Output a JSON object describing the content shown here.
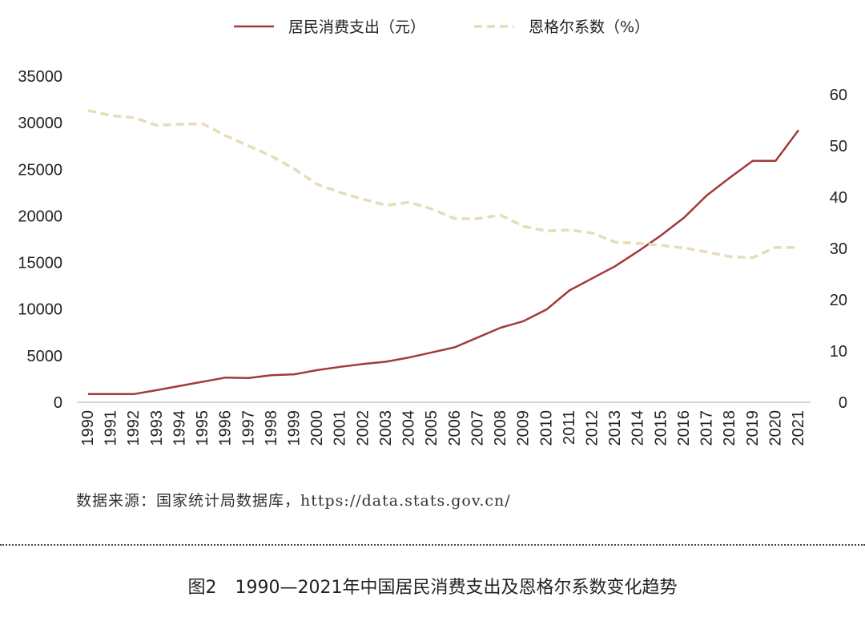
{
  "chart_data": {
    "type": "line",
    "title": "",
    "categories": [
      "1990",
      "1991",
      "1992",
      "1993",
      "1994",
      "1995",
      "1996",
      "1997",
      "1998",
      "1999",
      "2000",
      "2001",
      "2002",
      "2003",
      "2004",
      "2005",
      "2006",
      "2007",
      "2008",
      "2009",
      "2010",
      "2011",
      "2012",
      "2013",
      "2014",
      "2015",
      "2016",
      "2017",
      "2018",
      "2019",
      "2020",
      "2021"
    ],
    "series": [
      {
        "name": "居民消费支出（元）",
        "axis": "left",
        "style": "solid",
        "color": "#a23a3a",
        "values": [
          880,
          880,
          880,
          1300,
          1750,
          2200,
          2650,
          2600,
          2900,
          3000,
          3450,
          3800,
          4100,
          4350,
          4800,
          5350,
          5900,
          6950,
          8000,
          8700,
          9950,
          12000,
          13300,
          14600,
          16200,
          17900,
          19800,
          22200,
          24100,
          25900,
          25900,
          29200
        ]
      },
      {
        "name": "恩格尔系数（%）",
        "axis": "right",
        "style": "dashed",
        "color": "#e6dcb8",
        "values": [
          56.9,
          55.9,
          55.5,
          54.0,
          54.2,
          54.3,
          52.0,
          50.0,
          48.0,
          45.5,
          42.5,
          40.9,
          39.6,
          38.4,
          39.0,
          37.7,
          35.8,
          35.8,
          36.5,
          34.3,
          33.4,
          33.6,
          33.0,
          31.2,
          31.0,
          30.6,
          30.1,
          29.3,
          28.4,
          28.2,
          30.2,
          30.2
        ]
      }
    ],
    "left_axis": {
      "min": 0,
      "max": 35000,
      "ticks": [
        "0",
        "5000",
        "10000",
        "15000",
        "20000",
        "25000",
        "30000",
        "35000"
      ]
    },
    "right_axis": {
      "min": 0,
      "max": 60,
      "ticks": [
        "0",
        "10",
        "20",
        "30",
        "40",
        "50",
        "60"
      ]
    },
    "grid": false,
    "legend_position": "top-center"
  },
  "source_note": "数据来源：国家统计局数据库，https://data.stats.gov.cn/",
  "caption": {
    "figure_number": "图2",
    "title": "1990—2021年中国居民消费支出及恩格尔系数变化趋势"
  }
}
